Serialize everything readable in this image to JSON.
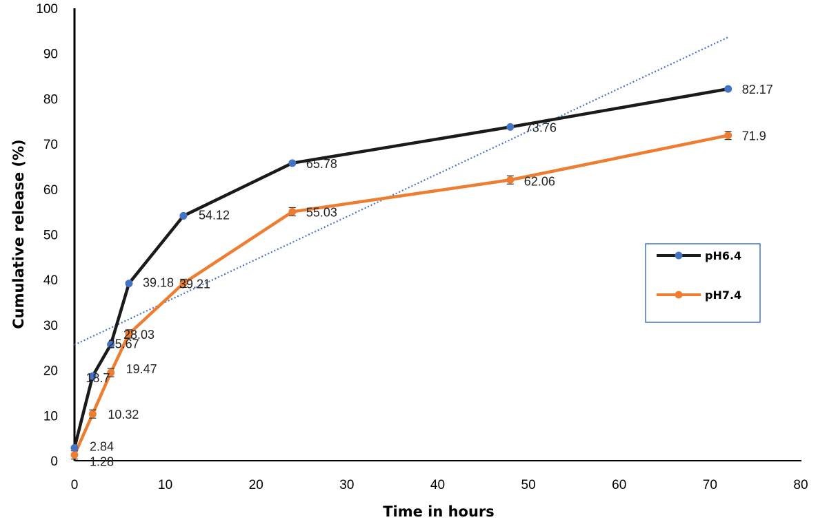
{
  "chart_data": {
    "type": "line",
    "title": "",
    "xlabel": "Time in hours",
    "ylabel": "Cumulative release (%)",
    "xlim": [
      0,
      80
    ],
    "ylim": [
      0,
      100
    ],
    "x_ticks": [
      0,
      10,
      20,
      30,
      40,
      50,
      60,
      70,
      80
    ],
    "y_ticks": [
      0,
      10,
      20,
      30,
      40,
      50,
      60,
      70,
      80,
      90,
      100
    ],
    "x_tick_labels": [
      "0",
      "10",
      "20",
      "30",
      "40",
      "50",
      "60",
      "70",
      "80"
    ],
    "y_tick_labels": [
      "0",
      "10",
      "20",
      "30",
      "40",
      "50",
      "60",
      "70",
      "80",
      "90",
      "100"
    ],
    "grid": false,
    "legend_position": "right",
    "series": [
      {
        "name": "pH6.4",
        "color": "#1a1a1a",
        "marker_color": "#4472c4",
        "x": [
          0,
          2,
          4,
          6,
          12,
          24,
          48,
          72
        ],
        "y": [
          2.84,
          18.7,
          25.67,
          39.18,
          54.12,
          65.78,
          73.76,
          82.17
        ],
        "labels": [
          "2.84",
          "18.7",
          "25.67",
          "39.18",
          "54.12",
          "65.78",
          "73.76",
          "82.17"
        ]
      },
      {
        "name": "pH7.4",
        "color": "#ed7d31",
        "marker_color": "#ed7d31",
        "error_bars": true,
        "x": [
          0,
          2,
          4,
          6,
          12,
          24,
          48,
          72
        ],
        "y": [
          1.28,
          10.32,
          19.47,
          28.03,
          39.21,
          55.03,
          62.06,
          71.9
        ],
        "labels": [
          "1.28",
          "10.32",
          "19.47",
          "28.03",
          "39.21",
          "55.03",
          "62.06",
          "71.9"
        ]
      }
    ],
    "trendline": {
      "type": "linear",
      "color": "#4472c4",
      "style": "dotted",
      "x": [
        0,
        72
      ],
      "y": [
        25.6,
        93.6
      ]
    }
  }
}
